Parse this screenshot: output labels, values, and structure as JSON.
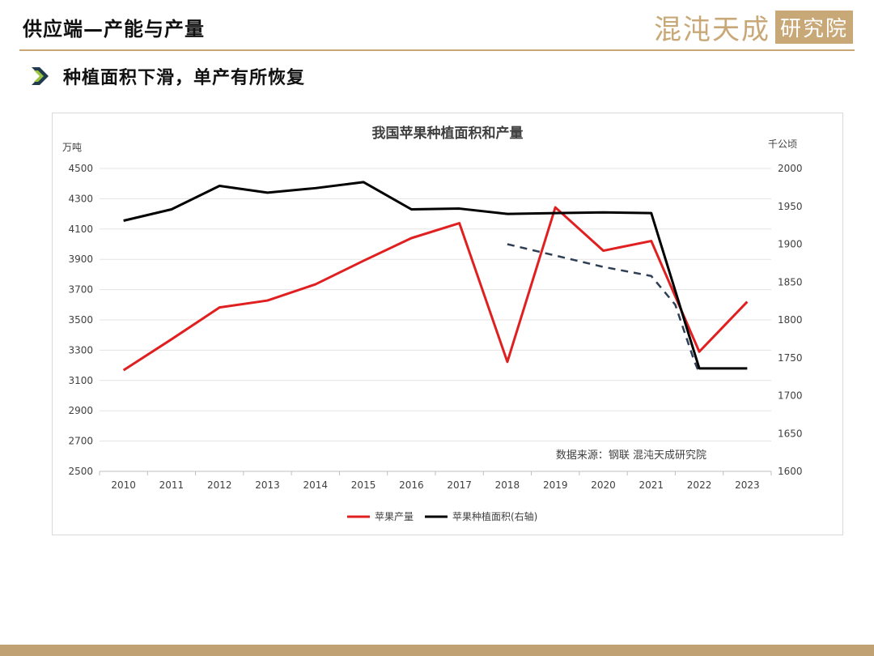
{
  "header": {
    "title": "供应端—产能与产量",
    "brand_name": "混沌天成",
    "brand_box": "研究院"
  },
  "section": {
    "subtitle": "种植面积下滑，单产有所恢复"
  },
  "colors": {
    "brand_gold": "#c9a877",
    "chevron_dark": "#1f3b4d",
    "chevron_light": "#9bc23c",
    "production": "#e02020",
    "area": "#000000",
    "dashed_trend": "#2e3f55"
  },
  "chart_data": {
    "type": "line",
    "title": "我国苹果种植面积和产量",
    "ylabel_left": "万吨",
    "ylabel_right": "千公顷",
    "categories": [
      "2010",
      "2011",
      "2012",
      "2013",
      "2014",
      "2015",
      "2016",
      "2017",
      "2018",
      "2019",
      "2020",
      "2021",
      "2022",
      "2023"
    ],
    "y_left": {
      "min": 2500,
      "max": 4500,
      "ticks": [
        2500,
        2700,
        2900,
        3100,
        3300,
        3500,
        3700,
        3900,
        4100,
        4300,
        4500
      ]
    },
    "y_right": {
      "min": 1600,
      "max": 2000,
      "ticks": [
        1600,
        1650,
        1700,
        1750,
        1800,
        1850,
        1900,
        1950,
        2000
      ]
    },
    "grid": true,
    "legend_position": "bottom",
    "source_note": "数据来源：钢联   混沌天成研究院",
    "series": [
      {
        "name": "苹果产量",
        "axis": "left",
        "color": "#e02020",
        "values": [
          3168,
          3372,
          3582,
          3628,
          3735,
          3890,
          4040,
          4139,
          3223,
          4243,
          3957,
          4021,
          3290,
          3620
        ]
      },
      {
        "name": "苹果种植面积(右轴)",
        "axis": "right",
        "color": "#000000",
        "values": [
          1931,
          1946,
          1977,
          1968,
          1974,
          1982,
          1946,
          1947,
          1940,
          1941,
          1942,
          1941,
          1736,
          1736
        ]
      }
    ],
    "trend_line": {
      "axis": "right",
      "style": "dashed",
      "color": "#2e3f55",
      "points": [
        [
          2018,
          1900
        ],
        [
          2019,
          1885
        ],
        [
          2020,
          1870
        ],
        [
          2021,
          1858
        ],
        [
          2021.5,
          1820
        ],
        [
          2021.9,
          1745
        ],
        [
          2022,
          1730
        ]
      ]
    }
  }
}
